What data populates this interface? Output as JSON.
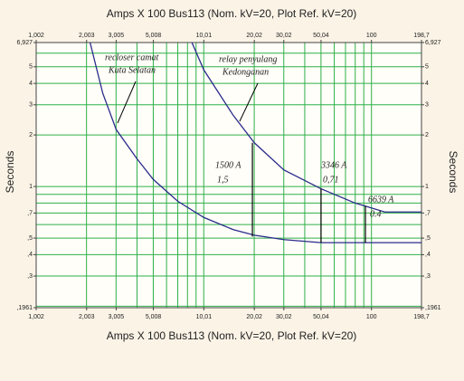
{
  "chart_data": {
    "type": "line",
    "xlabel": "Amps  X  100   Bus113 (Nom. kV=20, Plot Ref. kV=20)",
    "ylabel": "Seconds",
    "xlog": true,
    "ylog": true,
    "grid": true,
    "xlim": [
      1.002,
      198.7
    ],
    "ylim": [
      0.1961,
      6.927
    ],
    "xticks": [
      {
        "value": 1.002,
        "label": "1,002"
      },
      {
        "value": 2.003,
        "label": "2,003"
      },
      {
        "value": 3.005,
        "label": "3,005"
      },
      {
        "value": 5.008,
        "label": "5,008"
      },
      {
        "value": 10.01,
        "label": "10,01"
      },
      {
        "value": 20.02,
        "label": "20,02"
      },
      {
        "value": 30.02,
        "label": "30,02"
      },
      {
        "value": 50.04,
        "label": "50,04"
      },
      100,
      {
        "value": 198.7,
        "label": "198,7"
      }
    ],
    "yticks": [
      {
        "value": 6.927,
        "label": "6,927"
      },
      5,
      4,
      3,
      2,
      1,
      {
        "value": 0.7,
        "label": ",7"
      },
      {
        "value": 0.5,
        "label": ",5"
      },
      {
        "value": 0.4,
        "label": ",4"
      },
      {
        "value": 0.3,
        "label": ",3"
      },
      {
        "value": 0.1961,
        "label": ",1961"
      }
    ],
    "xgrid": [
      2,
      3,
      4,
      5,
      6,
      7,
      8,
      9,
      10,
      20,
      30,
      40,
      50,
      60,
      70,
      80,
      90,
      100
    ],
    "ygrid": [
      0.2,
      0.3,
      0.4,
      0.5,
      0.6,
      0.7,
      0.8,
      0.9,
      1,
      2,
      3,
      4,
      5,
      6
    ],
    "series": [
      {
        "name": "recloser camat Kuta Selatan",
        "color": "#2b2b8c",
        "x": [
          2.1,
          2.5,
          3.005,
          4,
          5,
          7,
          10,
          15,
          20,
          30,
          50,
          100,
          198.7
        ],
        "values": [
          6.927,
          3.5,
          2.15,
          1.45,
          1.1,
          0.82,
          0.66,
          0.56,
          0.52,
          0.49,
          0.47,
          0.47,
          0.47
        ]
      },
      {
        "name": "relay penyulang Kedonganan",
        "color": "#2b2b8c",
        "x": [
          8.5,
          10,
          15,
          20.02,
          30,
          50,
          80,
          120,
          198.7
        ],
        "values": [
          6.927,
          4.8,
          2.6,
          1.8,
          1.25,
          0.97,
          0.8,
          0.71,
          0.71
        ]
      }
    ],
    "markers": [
      {
        "current": "1500 A",
        "time": "1,5",
        "x": 19.5,
        "top": 1.8,
        "bottom": 0.51
      },
      {
        "current": "3346 A",
        "time": "0,71",
        "x": 50.04,
        "top": 0.97,
        "bottom": 0.47
      },
      {
        "current": "6639 A",
        "time": "0.4",
        "x": 92,
        "top": 0.77,
        "bottom": 0.47
      }
    ],
    "annotations": [
      {
        "lines": [
          "recloser camat",
          "Kuta Selatan"
        ]
      },
      {
        "lines": [
          "relay penyulang",
          "Kedonganan"
        ]
      }
    ]
  }
}
